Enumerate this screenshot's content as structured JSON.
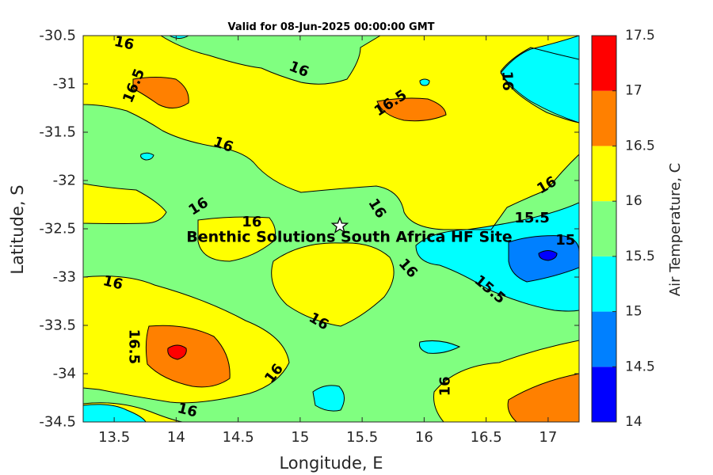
{
  "chart_data": {
    "type": "contour",
    "title": "Valid for 08-Jun-2025 00:00:00 GMT",
    "xlabel": "Longitude, E",
    "ylabel": "Latitude, S",
    "xlim": [
      13.25,
      17.25
    ],
    "ylim": [
      -34.5,
      -30.5
    ],
    "xticks": [
      "13.5",
      "14",
      "14.5",
      "15",
      "15.5",
      "16",
      "16.5",
      "17"
    ],
    "yticks": [
      "-30.5",
      "-31",
      "-31.5",
      "-32",
      "-32.5",
      "-33",
      "-33.5",
      "-34",
      "-34.5"
    ],
    "colorbar": {
      "label": "Air Temperature, C",
      "levels": [
        14,
        14.5,
        15,
        15.5,
        16,
        16.5,
        17,
        17.5
      ],
      "tick_labels": [
        "14",
        "14.5",
        "15",
        "15.5",
        "16",
        "16.5",
        "17",
        "17.5"
      ],
      "colors": [
        "#0000ff",
        "#0080ff",
        "#00ffff",
        "#80ff80",
        "#ffff00",
        "#ff8000",
        "#ff0000",
        "#800000"
      ]
    },
    "contour_labels": [
      {
        "text": "16",
        "lon": 13.58,
        "lat": -30.58,
        "angle": 12
      },
      {
        "text": "16",
        "lon": 14.99,
        "lat": -30.85,
        "angle": 22
      },
      {
        "text": "16.5",
        "lon": 13.66,
        "lat": -31.02,
        "angle": -68
      },
      {
        "text": "16.5",
        "lon": 15.73,
        "lat": -31.2,
        "angle": -33
      },
      {
        "text": "16",
        "lon": 16.67,
        "lat": -30.97,
        "angle": 88
      },
      {
        "text": "16",
        "lon": 14.38,
        "lat": -31.63,
        "angle": 20
      },
      {
        "text": "16",
        "lon": 14.18,
        "lat": -32.27,
        "angle": -32
      },
      {
        "text": "16",
        "lon": 14.61,
        "lat": -32.43,
        "angle": 0
      },
      {
        "text": "16",
        "lon": 15.62,
        "lat": -32.29,
        "angle": 58
      },
      {
        "text": "16",
        "lon": 16.99,
        "lat": -32.05,
        "angle": -30
      },
      {
        "text": "15.5",
        "lon": 16.87,
        "lat": -32.39,
        "angle": 0
      },
      {
        "text": "15",
        "lon": 17.14,
        "lat": -32.62,
        "angle": 0
      },
      {
        "text": "16",
        "lon": 15.87,
        "lat": -32.91,
        "angle": 48
      },
      {
        "text": "15.5",
        "lon": 16.53,
        "lat": -33.13,
        "angle": 40
      },
      {
        "text": "16",
        "lon": 13.49,
        "lat": -33.06,
        "angle": 14
      },
      {
        "text": "16",
        "lon": 15.15,
        "lat": -33.46,
        "angle": 30
      },
      {
        "text": "16.5",
        "lon": 13.66,
        "lat": -33.72,
        "angle": 90
      },
      {
        "text": "16",
        "lon": 14.79,
        "lat": -34.0,
        "angle": -52
      },
      {
        "text": "16",
        "lon": 16.17,
        "lat": -34.13,
        "angle": -90
      },
      {
        "text": "16",
        "lon": 14.09,
        "lat": -34.38,
        "angle": 14
      }
    ],
    "markers": [
      {
        "name": "Benthic Solutions South Africa HF Site",
        "lon": 15.32,
        "lat": -32.47,
        "symbol": "star"
      }
    ]
  }
}
